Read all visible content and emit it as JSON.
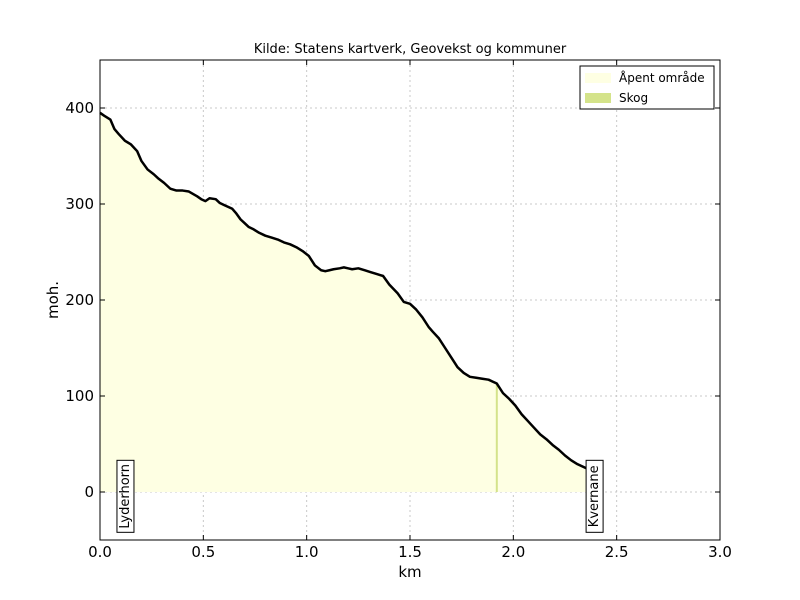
{
  "chart_data": {
    "type": "area",
    "title": "Kilde: Statens kartverk, Geovekst og kommuner",
    "xlabel": "km",
    "ylabel": "moh.",
    "xlim": [
      0.0,
      3.0
    ],
    "ylim": [
      -50,
      450
    ],
    "xticks": [
      0.0,
      0.5,
      1.0,
      1.5,
      2.0,
      2.5,
      3.0
    ],
    "xtick_labels": [
      "0.0",
      "0.5",
      "1.0",
      "1.5",
      "2.0",
      "2.5",
      "3.0"
    ],
    "yticks": [
      0,
      100,
      200,
      300,
      400
    ],
    "ytick_labels": [
      "0",
      "100",
      "200",
      "300",
      "400"
    ],
    "grid": true,
    "legend_position": "top-right",
    "series": [
      {
        "name": "Åpent område",
        "color": "#feffe3",
        "x": [
          0.0,
          0.02,
          0.05,
          0.07,
          0.09,
          0.12,
          0.15,
          0.18,
          0.2,
          0.23,
          0.26,
          0.28,
          0.31,
          0.34,
          0.37,
          0.4,
          0.43,
          0.47,
          0.49,
          0.51,
          0.53,
          0.56,
          0.58,
          0.6,
          0.62,
          0.64,
          0.66,
          0.68,
          0.7,
          0.72,
          0.74,
          0.77,
          0.8,
          0.83,
          0.86,
          0.89,
          0.92,
          0.95,
          0.98,
          1.01,
          1.04,
          1.07,
          1.09,
          1.11,
          1.13,
          1.16,
          1.18,
          1.2,
          1.22,
          1.25,
          1.28,
          1.31,
          1.34,
          1.37,
          1.4,
          1.44,
          1.47,
          1.5,
          1.53,
          1.56,
          1.59,
          1.61,
          1.64,
          1.67,
          1.7,
          1.73,
          1.76,
          1.79,
          1.82,
          1.85,
          1.88,
          1.9,
          1.92
        ],
        "y": [
          395,
          392,
          388,
          378,
          373,
          366,
          362,
          355,
          345,
          336,
          331,
          327,
          322,
          316,
          314,
          314,
          313,
          308,
          305,
          303,
          306,
          305,
          301,
          299,
          297,
          295,
          290,
          284,
          280,
          276,
          274,
          270,
          267,
          265,
          263,
          260,
          258,
          255,
          251,
          246,
          236,
          231,
          230,
          231,
          232,
          233,
          234,
          233,
          232,
          233,
          231,
          229,
          227,
          225,
          216,
          207,
          198,
          196,
          190,
          182,
          172,
          167,
          160,
          150,
          140,
          130,
          124,
          120,
          119,
          118,
          117,
          115,
          113
        ]
      },
      {
        "name": "Skog",
        "color": "#d4e38a",
        "x": [
          1.92
        ],
        "y": [
          113
        ]
      },
      {
        "name": "Åpent område",
        "color": "#feffe3",
        "x": [
          1.92,
          1.95,
          1.98,
          2.01,
          2.04,
          2.07,
          2.1,
          2.13,
          2.16,
          2.19,
          2.22,
          2.25,
          2.28,
          2.31,
          2.34,
          2.37,
          2.4,
          2.42
        ],
        "y": [
          113,
          103,
          97,
          90,
          81,
          74,
          67,
          60,
          55,
          49,
          44,
          38,
          33,
          29,
          26,
          23,
          21,
          20
        ]
      }
    ],
    "profile_line": {
      "color": "#000000",
      "x": [
        0.0,
        0.02,
        0.05,
        0.07,
        0.09,
        0.12,
        0.15,
        0.18,
        0.2,
        0.23,
        0.26,
        0.28,
        0.31,
        0.34,
        0.37,
        0.4,
        0.43,
        0.47,
        0.49,
        0.51,
        0.53,
        0.56,
        0.58,
        0.6,
        0.62,
        0.64,
        0.66,
        0.68,
        0.7,
        0.72,
        0.74,
        0.77,
        0.8,
        0.83,
        0.86,
        0.89,
        0.92,
        0.95,
        0.98,
        1.01,
        1.04,
        1.07,
        1.09,
        1.11,
        1.13,
        1.16,
        1.18,
        1.2,
        1.22,
        1.25,
        1.28,
        1.31,
        1.34,
        1.37,
        1.4,
        1.44,
        1.47,
        1.5,
        1.53,
        1.56,
        1.59,
        1.61,
        1.64,
        1.67,
        1.7,
        1.73,
        1.76,
        1.79,
        1.82,
        1.85,
        1.88,
        1.9,
        1.92,
        1.95,
        1.98,
        2.01,
        2.04,
        2.07,
        2.1,
        2.13,
        2.16,
        2.19,
        2.22,
        2.25,
        2.28,
        2.31,
        2.34,
        2.37,
        2.4,
        2.42
      ],
      "y": [
        395,
        392,
        388,
        378,
        373,
        366,
        362,
        355,
        345,
        336,
        331,
        327,
        322,
        316,
        314,
        314,
        313,
        308,
        305,
        303,
        306,
        305,
        301,
        299,
        297,
        295,
        290,
        284,
        280,
        276,
        274,
        270,
        267,
        265,
        263,
        260,
        258,
        255,
        251,
        246,
        236,
        231,
        230,
        231,
        232,
        233,
        234,
        233,
        232,
        233,
        231,
        229,
        227,
        225,
        216,
        207,
        198,
        196,
        190,
        182,
        172,
        167,
        160,
        150,
        140,
        130,
        124,
        120,
        119,
        118,
        117,
        115,
        113,
        103,
        97,
        90,
        81,
        74,
        67,
        60,
        55,
        49,
        44,
        38,
        33,
        29,
        26,
        23,
        21,
        20
      ]
    },
    "forest_marker": {
      "x": 1.92,
      "y": 113,
      "color": "#d4e38a"
    },
    "places": [
      {
        "name": "Lyderhorn",
        "x": 0.07
      },
      {
        "name": "Kvernane",
        "x": 2.34
      }
    ],
    "legend": [
      {
        "label": "Åpent område",
        "color": "#feffe3"
      },
      {
        "label": "Skog",
        "color": "#d4e38a"
      }
    ]
  }
}
